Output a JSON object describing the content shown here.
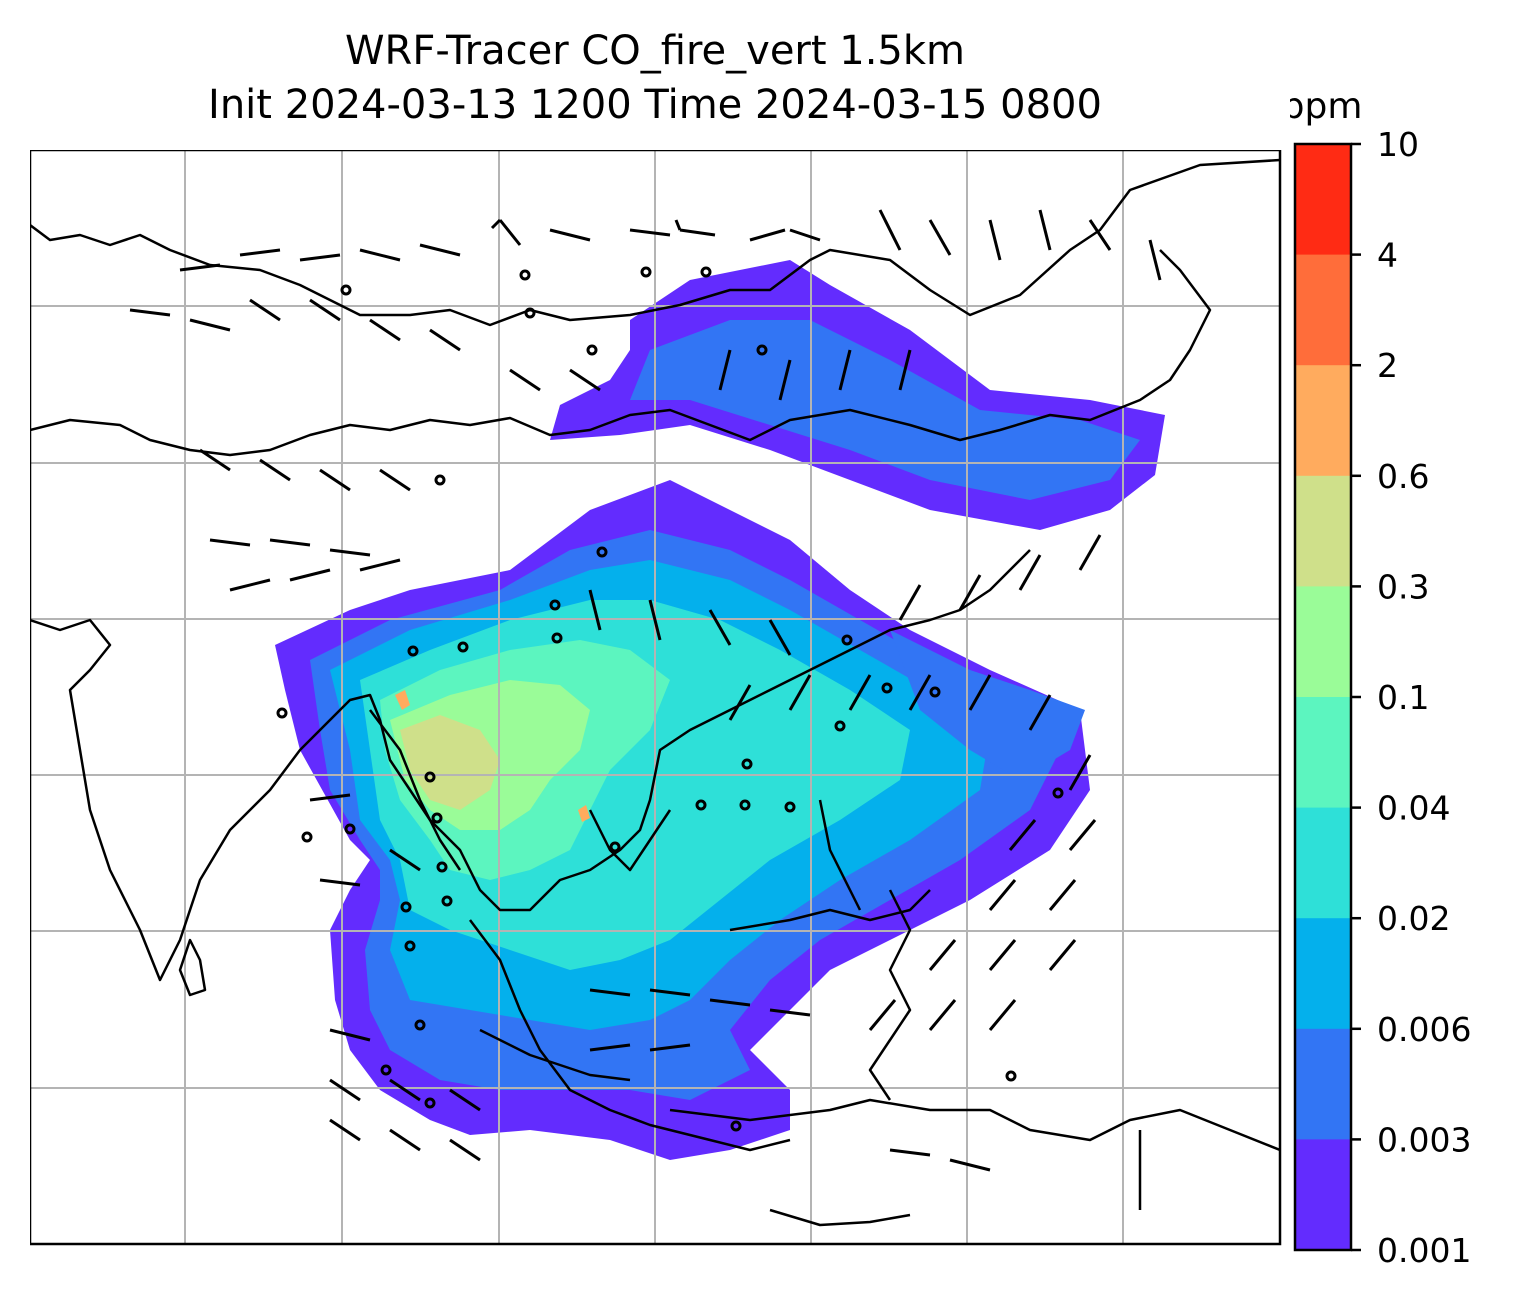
{
  "title": {
    "line1": "WRF-Tracer CO_fire_vert 1.5km",
    "line2": "Init 2024-03-13 1200 Time 2024-03-15 0800"
  },
  "colorbar": {
    "unit": "ppm",
    "ticks": [
      "10",
      "4",
      "2",
      "0.6",
      "0.3",
      "0.1",
      "0.04",
      "0.02",
      "0.006",
      "0.003",
      "0.001"
    ],
    "colors": [
      "#ff2b14",
      "#ff6d3a",
      "#ffab5e",
      "#cfe08a",
      "#9afc98",
      "#5cf5bf",
      "#2ee0d8",
      "#04b0ec",
      "#3275f4",
      "#632cfe"
    ]
  },
  "map": {
    "coastline_color": "#000000",
    "gridline_color": "#b4b4b4"
  }
}
